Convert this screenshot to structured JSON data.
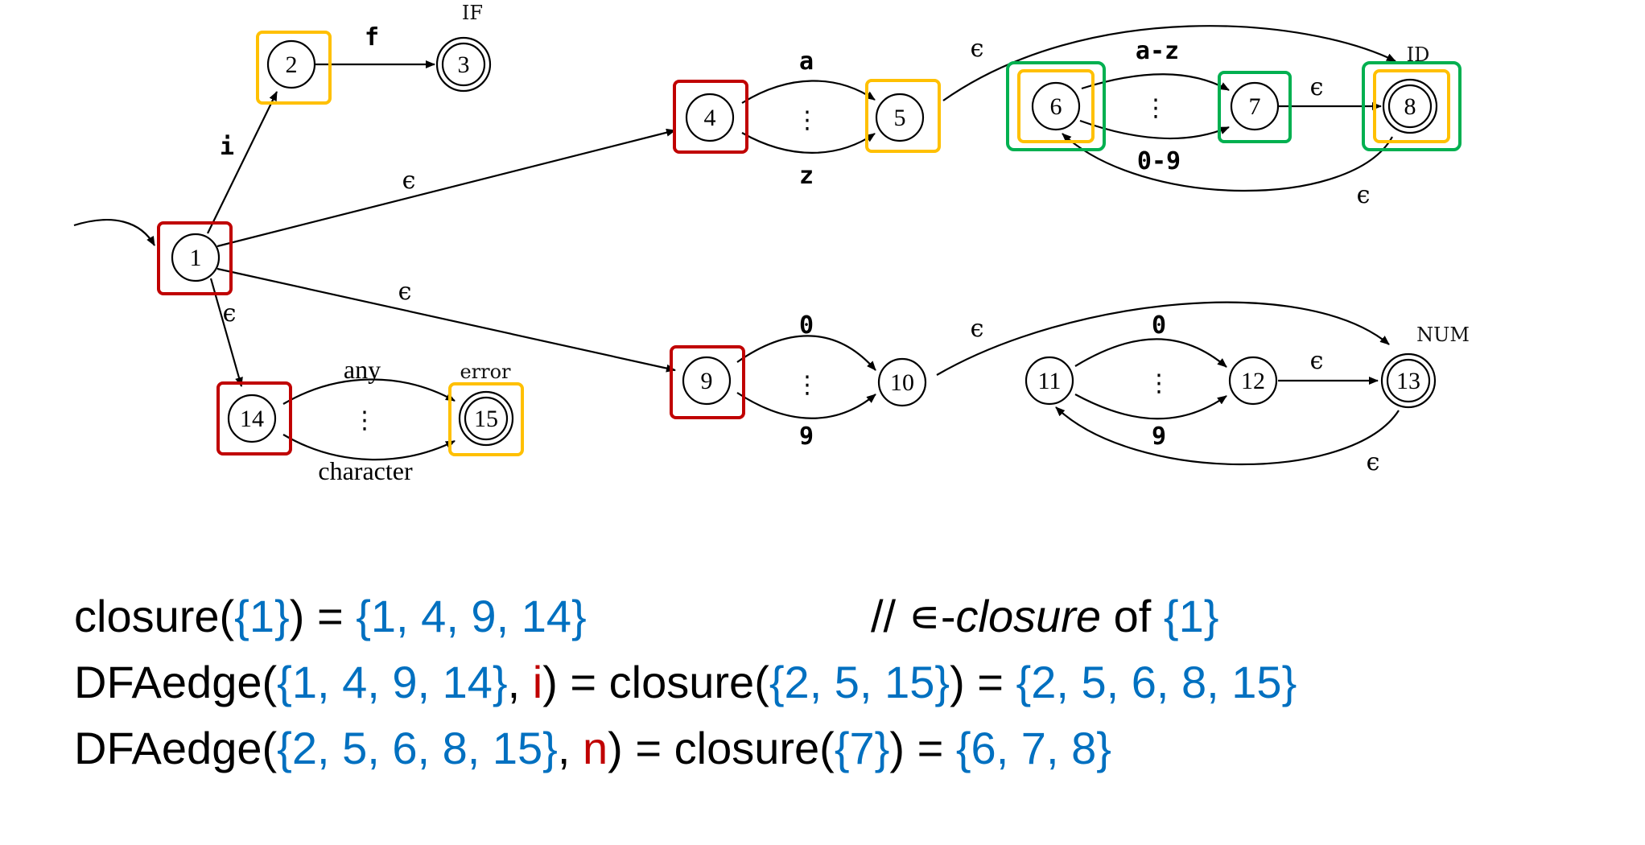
{
  "nfa": {
    "states": [
      {
        "id": "1",
        "label": "1"
      },
      {
        "id": "2",
        "label": "2"
      },
      {
        "id": "3",
        "label": "3",
        "accepting": true,
        "token": "IF"
      },
      {
        "id": "4",
        "label": "4"
      },
      {
        "id": "5",
        "label": "5"
      },
      {
        "id": "6",
        "label": "6"
      },
      {
        "id": "7",
        "label": "7"
      },
      {
        "id": "8",
        "label": "8",
        "accepting": true,
        "token": "ID"
      },
      {
        "id": "9",
        "label": "9"
      },
      {
        "id": "10",
        "label": "10"
      },
      {
        "id": "11",
        "label": "11"
      },
      {
        "id": "12",
        "label": "12"
      },
      {
        "id": "13",
        "label": "13",
        "accepting": true,
        "token": "NUM"
      },
      {
        "id": "14",
        "label": "14"
      },
      {
        "id": "15",
        "label": "15",
        "accepting": true,
        "token": "error"
      }
    ],
    "edge_labels": {
      "e1_2": "i",
      "e2_3": "f",
      "e1_4": "ϵ",
      "e4_5_top": "a",
      "e4_5_bottom": "z",
      "e5_8": "ϵ",
      "e6_7_top": "a-z",
      "e6_7_bottom": "0-9",
      "e7_8": "ϵ",
      "e8_6": "ϵ",
      "e1_9": "ϵ",
      "e9_10_top": "0",
      "e9_10_bottom": "9",
      "e10_13": "ϵ",
      "e11_12_top": "0",
      "e11_12_bottom": "9",
      "e12_13": "ϵ",
      "e13_11": "ϵ",
      "e1_14": "ϵ",
      "e14_15_top": "any",
      "e14_15_bottom": "character"
    },
    "dots": "⋮",
    "highlight_colors": {
      "red": "#c00000",
      "orange": "#ffc000",
      "green": "#00b050"
    }
  },
  "lines": {
    "l1": {
      "a": "closure(",
      "b": "{1}",
      "c": ") = ",
      "d": "{1, 4, 9, 14}",
      "comment_a": "// ∊-",
      "comment_b": "closure",
      "comment_c": " of ",
      "comment_d": "{1}"
    },
    "l2": {
      "a": "DFAedge(",
      "b": "{1, 4, 9, 14}",
      "c": ", ",
      "d": "i",
      "e": ") = closure(",
      "f": "{2, 5, 15}",
      "g": ") = ",
      "h": "{2, 5, 6, 8, 15}"
    },
    "l3": {
      "a": "DFAedge(",
      "b": "{2, 5, 6, 8, 15}",
      "c": ", ",
      "d": "n",
      "e": ") = closure(",
      "f": "{7}",
      "g": ") = ",
      "h": "{6, 7, 8}"
    }
  }
}
